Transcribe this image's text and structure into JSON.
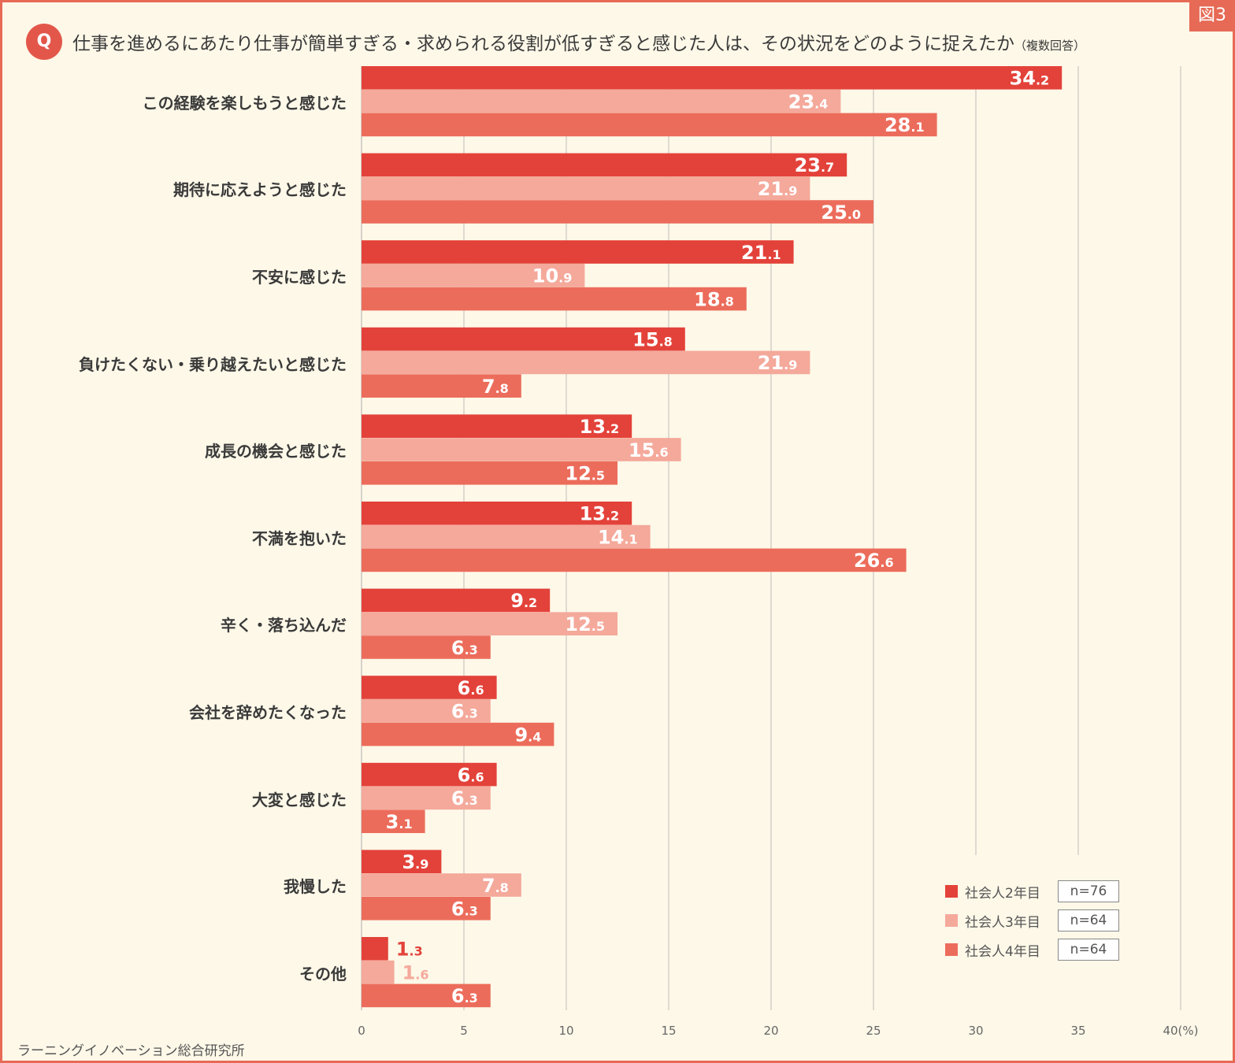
{
  "figure_label": "図3",
  "q_badge": "Q",
  "question": "仕事を進めるにあたり仕事が簡単すぎる・求められる役割が低すぎると感じた人は、その状況をどのように捉えたか",
  "question_note": "（複数回答）",
  "source": "ラーニングイノベーション総合研究所",
  "chart_data": {
    "type": "bar",
    "orientation": "horizontal",
    "title": "仕事を進めるにあたり仕事が簡単すぎる・求められる役割が低すぎると感じた人は、その状況をどのように捉えたか（複数回答）",
    "categories": [
      "この経験を楽しもうと感じた",
      "期待に応えようと感じた",
      "不安に感じた",
      "負けたくない・乗り越えたいと感じた",
      "成長の機会と感じた",
      "不満を抱いた",
      "辛く・落ち込んだ",
      "会社を辞めたくなった",
      "大変と感じた",
      "我慢した",
      "その他"
    ],
    "series": [
      {
        "name": "社会人2年目",
        "n": "n=76",
        "color": "#e3423a",
        "values": [
          34.2,
          23.7,
          21.1,
          15.8,
          13.2,
          13.2,
          9.2,
          6.6,
          6.6,
          3.9,
          1.3
        ]
      },
      {
        "name": "社会人3年目",
        "n": "n=64",
        "color": "#f4a99b",
        "values": [
          23.4,
          21.9,
          10.9,
          21.9,
          15.6,
          14.1,
          12.5,
          6.3,
          6.3,
          7.8,
          1.6
        ]
      },
      {
        "name": "社会人4年目",
        "n": "n=64",
        "color": "#ec6c5b",
        "values": [
          28.1,
          25.0,
          18.8,
          7.8,
          12.5,
          26.6,
          6.3,
          9.4,
          3.1,
          6.3,
          6.3
        ]
      }
    ],
    "xlim": [
      0,
      40
    ],
    "xticks": [
      0,
      5,
      10,
      15,
      20,
      25,
      30,
      35,
      40
    ],
    "xtick_labels": [
      "0",
      "5",
      "10",
      "15",
      "20",
      "25",
      "30",
      "35",
      "40(%)"
    ],
    "xlabel": "",
    "ylabel": "",
    "grid": true,
    "legend_position": "bottom-right"
  }
}
